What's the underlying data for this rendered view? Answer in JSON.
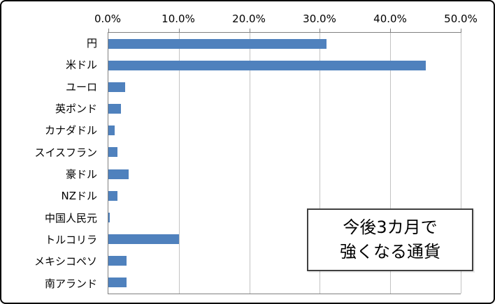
{
  "chart_data": {
    "type": "bar",
    "orientation": "horizontal",
    "title": "",
    "xlabel": "",
    "ylabel": "",
    "categories": [
      "円",
      "米ドル",
      "ユーロ",
      "英ポンド",
      "カナダドル",
      "スイスフラン",
      "豪ドル",
      "NZドル",
      "中国人民元",
      "トルコリラ",
      "メキシコペソ",
      "南アランド"
    ],
    "values": [
      31.0,
      45.0,
      2.4,
      1.8,
      0.9,
      1.3,
      2.9,
      1.3,
      0.2,
      10.0,
      2.6,
      2.6
    ],
    "xlim": [
      0,
      50
    ],
    "x_tick_values": [
      0,
      10,
      20,
      30,
      40,
      50
    ],
    "x_tick_labels": [
      "0.0%",
      "10.0%",
      "20.0%",
      "30.0%",
      "40.0%",
      "50.0%"
    ],
    "grid": true,
    "legend": "none",
    "bar_color": "#4F81BD",
    "annotation": "今後3カ月で 強くなる通貨"
  },
  "annotation": {
    "line1": "今後3カ月で",
    "line2": "強くなる通貨"
  }
}
